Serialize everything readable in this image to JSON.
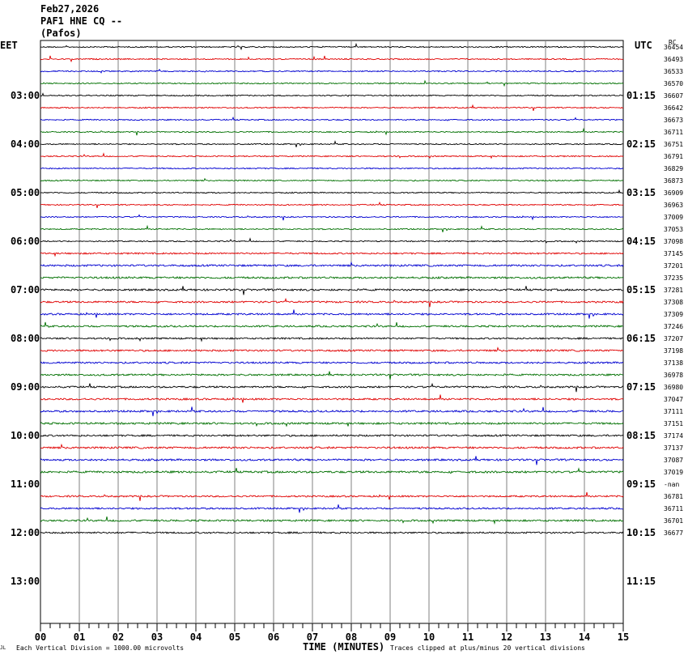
{
  "header": {
    "date": "Feb27,2026",
    "station": "PAF1 HNE CQ --",
    "location": "(Pafos)"
  },
  "left_label": "EET",
  "right_label": "UTC",
  "corner_label": "RC",
  "footer": {
    "left_note": "Each Vertical Division = 1000.00 microvolts",
    "axis_title": "TIME (MINUTES)",
    "right_note": "Traces clipped at plus/minus 20 vertical divisions",
    "corner_mark": "JL"
  },
  "colors": {
    "trace_cycle": [
      "#000000",
      "#e00000",
      "#0000d0",
      "#007000"
    ],
    "grid": "#808080"
  },
  "chart_data": {
    "type": "line",
    "xlabel": "TIME (MINUTES)",
    "x_ticks": [
      "00",
      "01",
      "02",
      "03",
      "04",
      "05",
      "06",
      "07",
      "08",
      "09",
      "10",
      "11",
      "12",
      "13",
      "14",
      "15"
    ],
    "xlim": [
      0,
      15
    ],
    "minutes_per_row": 15,
    "rows_per_hour": 4,
    "eet_hour_labels": [
      "03:00",
      "04:00",
      "05:00",
      "06:00",
      "07:00",
      "08:00",
      "09:00",
      "10:00",
      "11:00",
      "12:00",
      "13:00"
    ],
    "utc_hour_labels": [
      "01:15",
      "02:15",
      "03:15",
      "04:15",
      "05:15",
      "06:15",
      "07:15",
      "08:15",
      "09:15",
      "10:15",
      "11:15"
    ],
    "row_values": [
      "36454",
      "36493",
      "36533",
      "36570",
      "36607",
      "36642",
      "36673",
      "36711",
      "36751",
      "36791",
      "36829",
      "36873",
      "36909",
      "36963",
      "37009",
      "37053",
      "37098",
      "37145",
      "37201",
      "37235",
      "37281",
      "37308",
      "37309",
      "37246",
      "37207",
      "37198",
      "37138",
      "36978",
      "36980",
      "37047",
      "37111",
      "37151",
      "37174",
      "37137",
      "37087",
      "37019",
      "-nan",
      "36781",
      "36711",
      "36701",
      "36677"
    ],
    "missing_rows": [
      36
    ],
    "trace_amplitude": [
      1,
      1,
      1,
      1,
      1,
      1,
      1,
      1,
      1,
      1,
      1,
      1,
      1,
      1,
      1,
      1,
      1,
      1.3,
      1.6,
      1.6,
      1.6,
      1.5,
      1.5,
      1.5,
      1.4,
      1.5,
      1.5,
      1.5,
      1.5,
      1.5,
      1.6,
      1.6,
      1.5,
      1.6,
      1.6,
      1.7,
      0,
      1.4,
      1.4,
      1.5,
      1.4
    ]
  }
}
